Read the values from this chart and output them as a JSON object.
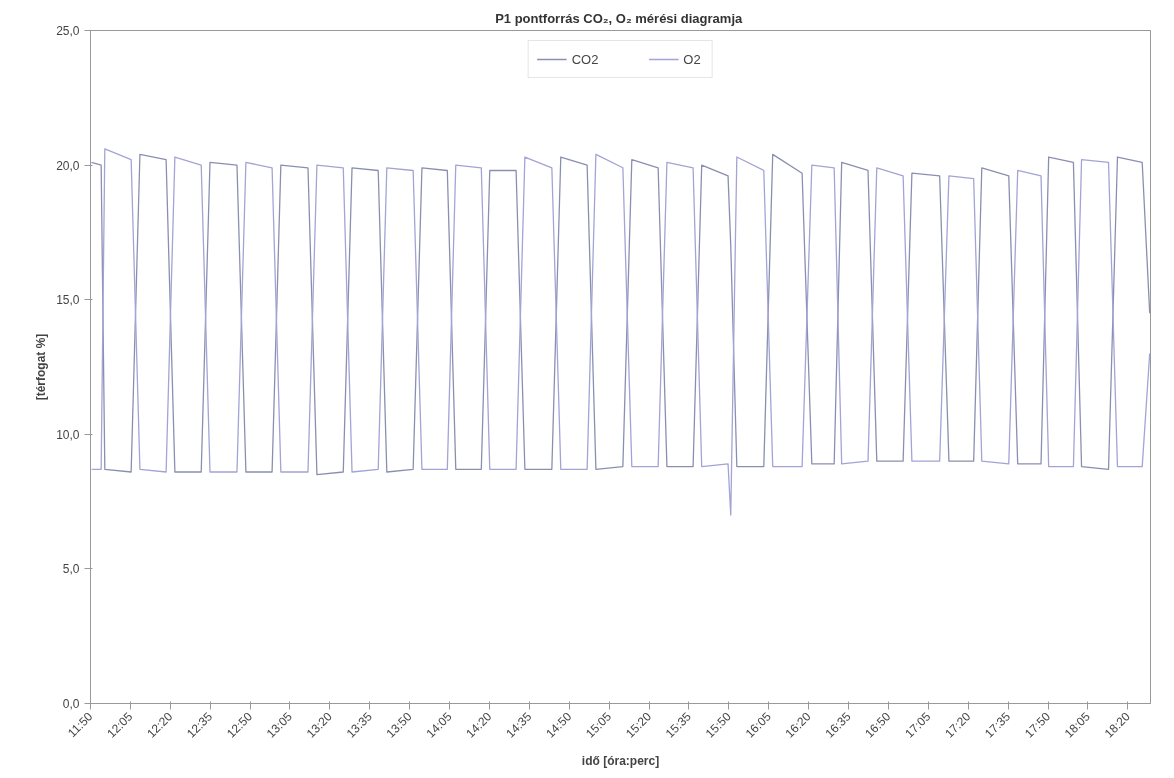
{
  "chart_data": {
    "type": "line",
    "title": "P1 pontforrás  CO₂, O₂ mérési diagramja",
    "xlabel": "idő [óra:perc]",
    "ylabel": "[térfogat %]",
    "x": [
      11.84,
      11.9,
      11.923,
      12.088,
      12.143,
      12.307,
      12.362,
      12.527,
      12.582,
      12.751,
      12.807,
      12.971,
      13.026,
      13.196,
      13.252,
      13.417,
      13.472,
      13.636,
      13.69,
      13.855,
      13.91,
      14.069,
      14.122,
      14.282,
      14.335,
      14.5,
      14.555,
      14.724,
      14.78,
      14.945,
      15.0,
      15.169,
      15.225,
      15.39,
      15.445,
      15.609,
      15.663,
      15.828,
      15.845,
      15.883,
      16.052,
      16.108,
      16.292,
      16.353,
      16.493,
      16.54,
      16.705,
      16.76,
      16.925,
      16.98,
      17.154,
      17.212,
      17.367,
      17.418,
      17.587,
      17.643,
      17.789,
      17.837,
      17.992,
      18.043,
      18.212,
      18.268,
      18.423,
      18.47
    ],
    "series": [
      {
        "name": "CO2",
        "color": "#8a8fb0",
        "values": [
          20.1,
          20.0,
          8.7,
          8.6,
          20.4,
          20.2,
          8.6,
          8.6,
          20.1,
          20.0,
          8.6,
          8.6,
          20.0,
          19.9,
          8.5,
          8.6,
          19.9,
          19.8,
          8.6,
          8.7,
          19.9,
          19.8,
          8.7,
          8.7,
          19.8,
          19.8,
          8.7,
          8.7,
          20.3,
          20.0,
          8.7,
          8.8,
          20.2,
          19.9,
          8.8,
          8.8,
          20.0,
          19.6,
          17.0,
          8.8,
          8.8,
          20.4,
          19.7,
          8.9,
          8.9,
          20.1,
          19.8,
          9.0,
          9.0,
          19.7,
          19.6,
          9.0,
          9.0,
          19.9,
          19.6,
          8.9,
          8.9,
          20.3,
          20.1,
          8.8,
          8.7,
          20.3,
          20.1,
          14.5
        ]
      },
      {
        "name": "O2",
        "color": "#a3a3d6",
        "values": [
          8.7,
          8.7,
          20.6,
          20.2,
          8.7,
          8.6,
          20.3,
          20.0,
          8.6,
          8.6,
          20.1,
          19.9,
          8.6,
          8.6,
          20.0,
          19.9,
          8.6,
          8.7,
          19.9,
          19.8,
          8.7,
          8.7,
          20.0,
          19.9,
          8.7,
          8.7,
          20.3,
          19.9,
          8.7,
          8.7,
          20.4,
          19.9,
          8.8,
          8.8,
          20.1,
          19.9,
          8.8,
          8.9,
          7.0,
          20.3,
          19.8,
          8.8,
          8.8,
          20.0,
          19.9,
          8.9,
          9.0,
          19.9,
          19.6,
          9.0,
          9.0,
          19.6,
          19.5,
          9.0,
          8.9,
          19.8,
          19.6,
          8.8,
          8.8,
          20.2,
          20.1,
          8.8,
          8.8,
          13.0
        ]
      }
    ],
    "xlim": [
      11.8333,
      18.475
    ],
    "ylim": [
      0,
      25
    ],
    "xticks": [
      {
        "value": 11.8333,
        "label": "11:50"
      },
      {
        "value": 12.0833,
        "label": "12:05"
      },
      {
        "value": 12.3333,
        "label": "12:20"
      },
      {
        "value": 12.5833,
        "label": "12:35"
      },
      {
        "value": 12.8333,
        "label": "12:50"
      },
      {
        "value": 13.0833,
        "label": "13:05"
      },
      {
        "value": 13.3333,
        "label": "13:20"
      },
      {
        "value": 13.5833,
        "label": "13:35"
      },
      {
        "value": 13.8333,
        "label": "13:50"
      },
      {
        "value": 14.0833,
        "label": "14:05"
      },
      {
        "value": 14.3333,
        "label": "14:20"
      },
      {
        "value": 14.5833,
        "label": "14:35"
      },
      {
        "value": 14.8333,
        "label": "14:50"
      },
      {
        "value": 15.0833,
        "label": "15:05"
      },
      {
        "value": 15.3333,
        "label": "15:20"
      },
      {
        "value": 15.5833,
        "label": "15:35"
      },
      {
        "value": 15.8333,
        "label": "15:50"
      },
      {
        "value": 16.0833,
        "label": "16:05"
      },
      {
        "value": 16.3333,
        "label": "16:20"
      },
      {
        "value": 16.5833,
        "label": "16:35"
      },
      {
        "value": 16.8333,
        "label": "16:50"
      },
      {
        "value": 17.0833,
        "label": "17:05"
      },
      {
        "value": 17.3333,
        "label": "17:20"
      },
      {
        "value": 17.5833,
        "label": "17:35"
      },
      {
        "value": 17.8333,
        "label": "17:50"
      },
      {
        "value": 18.0833,
        "label": "18:05"
      },
      {
        "value": 18.3333,
        "label": "18:20"
      }
    ],
    "yticks": [
      {
        "value": 0,
        "label": "0,0"
      },
      {
        "value": 5,
        "label": "5,0"
      },
      {
        "value": 10,
        "label": "10,0"
      },
      {
        "value": 15,
        "label": "15,0"
      },
      {
        "value": 20,
        "label": "20,0"
      },
      {
        "value": 25,
        "label": "25,0"
      }
    ],
    "grid": false,
    "legend": "top",
    "marker": "none",
    "line_style": "solid"
  }
}
